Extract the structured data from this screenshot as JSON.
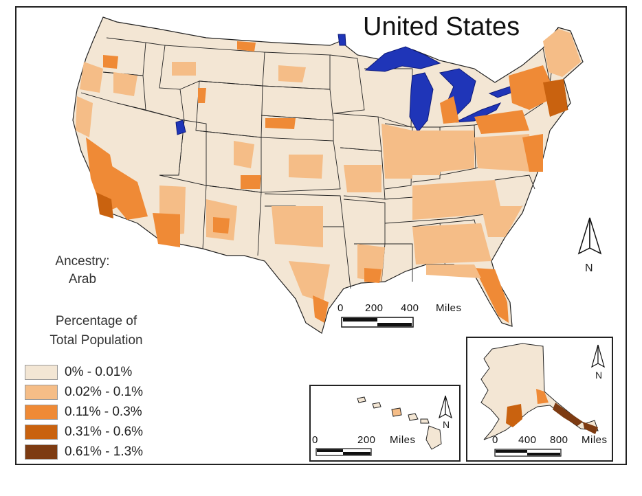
{
  "title": "United States",
  "ancestry": {
    "line1": "Ancestry:",
    "line2": "Arab"
  },
  "legend": {
    "title_line1": "Percentage of",
    "title_line2": "Total Population",
    "classes": [
      {
        "label": "0% - 0.01%",
        "color": "#f3e6d4"
      },
      {
        "label": "0.02% - 0.1%",
        "color": "#f5bd87"
      },
      {
        "label": "0.11% - 0.3%",
        "color": "#ef8a36"
      },
      {
        "label": "0.31% - 0.6%",
        "color": "#c9620f"
      },
      {
        "label": "0.61% - 1.3%",
        "color": "#7d3b12"
      }
    ]
  },
  "colors": {
    "water": "#1f35b8",
    "border": "#222222"
  },
  "mainland_scale": {
    "ticks": [
      "0",
      "200",
      "400"
    ],
    "unit": "Miles"
  },
  "hawaii_scale": {
    "ticks": [
      "0",
      "200"
    ],
    "unit": "Miles"
  },
  "alaska_scale": {
    "ticks": [
      "0",
      "400",
      "800"
    ],
    "unit": "Miles"
  },
  "north_label": "N",
  "icons": [
    "north-arrow-icon"
  ]
}
